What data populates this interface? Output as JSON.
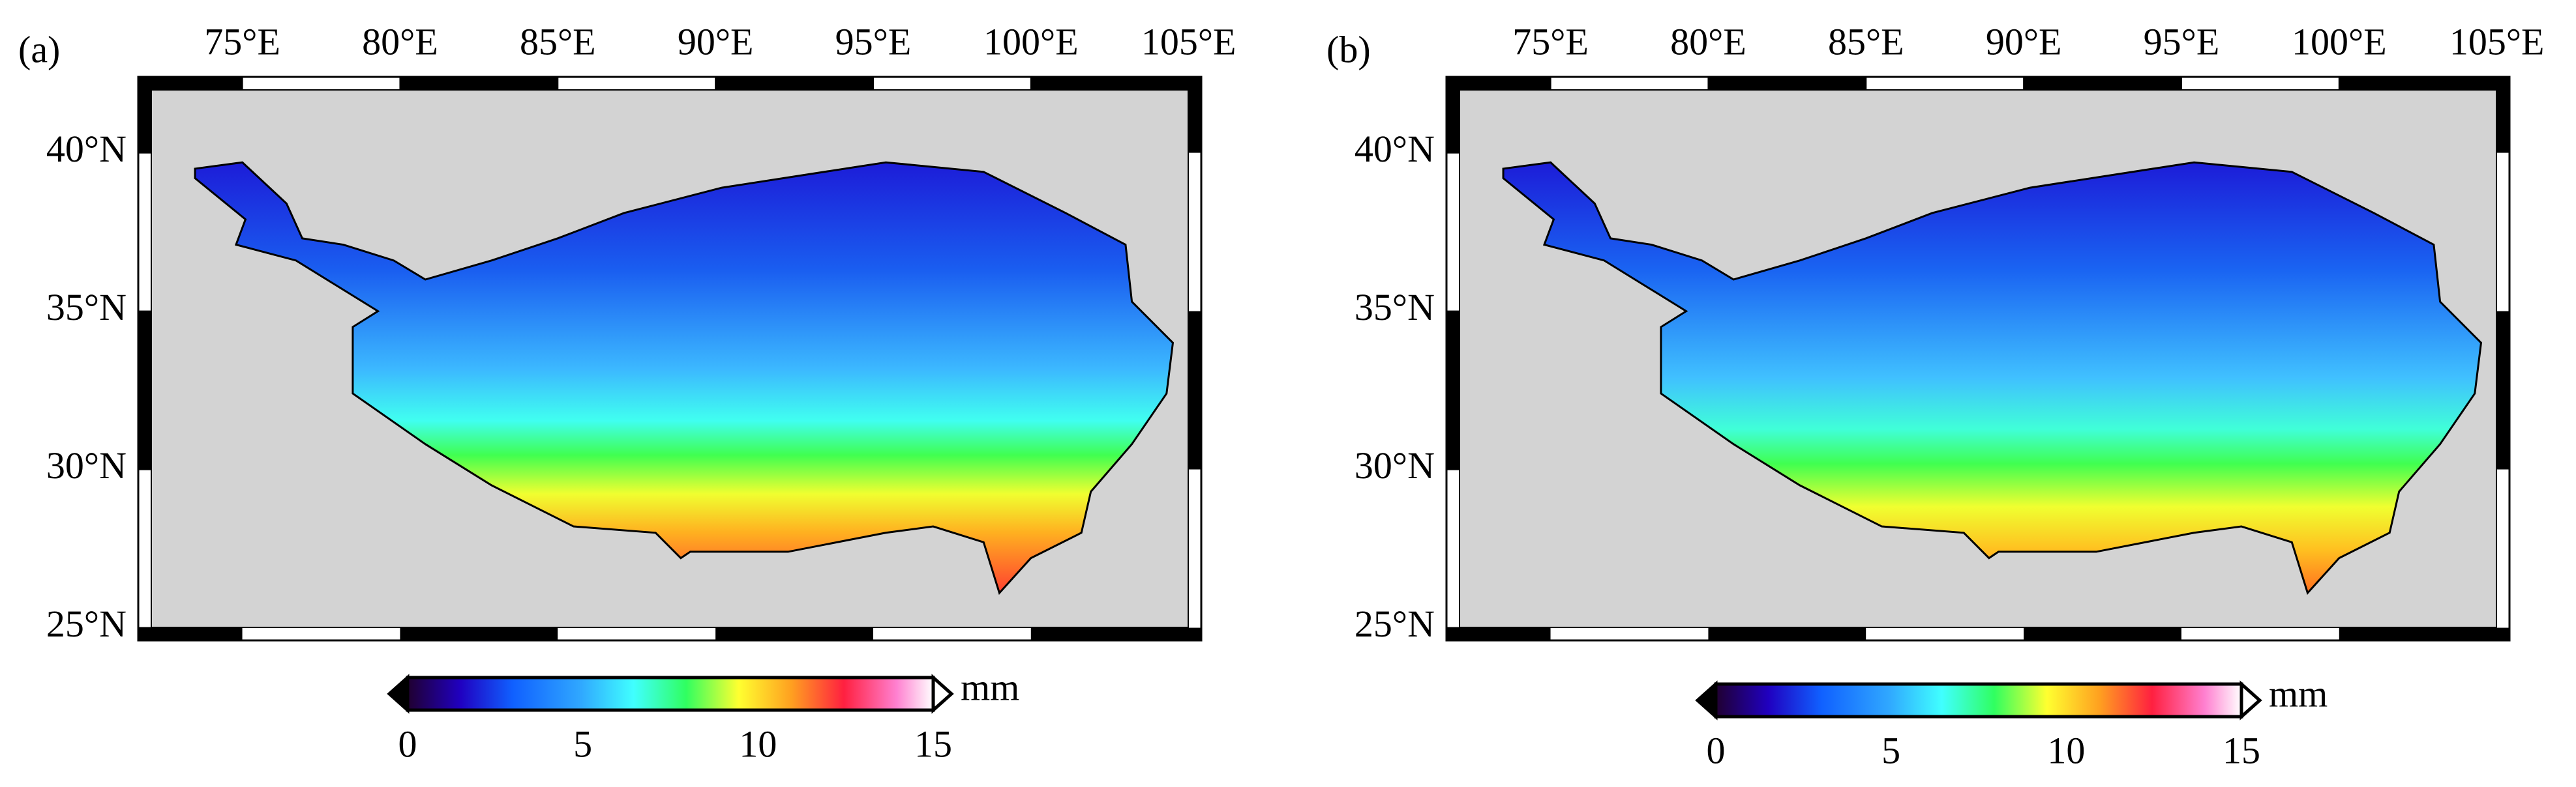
{
  "panels": [
    {
      "label": "(a)",
      "xlim": [
        71.7,
        105.4
      ],
      "ylim": [
        24.6,
        42.4
      ],
      "xticks": [
        {
          "value": 75,
          "label": "75°E"
        },
        {
          "value": 80,
          "label": "80°E"
        },
        {
          "value": 85,
          "label": "85°E"
        },
        {
          "value": 90,
          "label": "90°E"
        },
        {
          "value": 95,
          "label": "95°E"
        },
        {
          "value": 100,
          "label": "100°E"
        },
        {
          "value": 105,
          "label": "105°E"
        }
      ],
      "yticks": [
        {
          "value": 25,
          "label": "25°N"
        },
        {
          "value": 30,
          "label": "30°N"
        },
        {
          "value": 35,
          "label": "35°N"
        },
        {
          "value": 40,
          "label": "40°N"
        }
      ],
      "colorbar": {
        "lim": [
          0,
          15
        ],
        "ticks": [
          0,
          5,
          10,
          15
        ],
        "unit": "mm"
      }
    },
    {
      "label": "(b)",
      "xlim": [
        71.7,
        105.4
      ],
      "ylim": [
        24.6,
        42.4
      ],
      "xticks": [
        {
          "value": 75,
          "label": "75°E"
        },
        {
          "value": 80,
          "label": "80°E"
        },
        {
          "value": 85,
          "label": "85°E"
        },
        {
          "value": 90,
          "label": "90°E"
        },
        {
          "value": 95,
          "label": "95°E"
        },
        {
          "value": 100,
          "label": "100°E"
        },
        {
          "value": 105,
          "label": "105°E"
        }
      ],
      "yticks": [
        {
          "value": 25,
          "label": "25°N"
        },
        {
          "value": 30,
          "label": "30°N"
        },
        {
          "value": 35,
          "label": "35°N"
        },
        {
          "value": 40,
          "label": "40°N"
        }
      ],
      "colorbar": {
        "lim": [
          0,
          15
        ],
        "ticks": [
          0,
          5,
          10,
          15
        ],
        "unit": "mm"
      }
    }
  ]
}
